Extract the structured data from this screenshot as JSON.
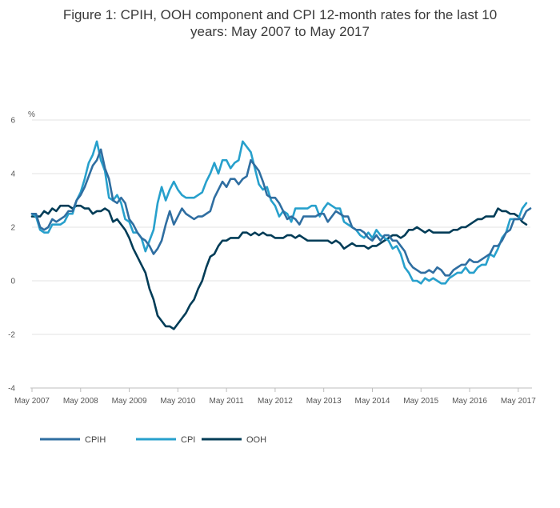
{
  "chart_data": {
    "type": "line",
    "title_lines": [
      "Figure 1: CPIH, OOH component and CPI 12-month rates for the last 10",
      "years: May 2007 to May 2017"
    ],
    "ylabel": "%",
    "ylim": [
      -4,
      6
    ],
    "yticks": [
      -4,
      -2,
      0,
      2,
      4,
      6
    ],
    "xticks": [
      "May 2007",
      "May 2008",
      "May 2009",
      "May 2010",
      "May 2011",
      "May 2012",
      "May 2013",
      "May 2014",
      "May 2015",
      "May 2016",
      "May 2017"
    ],
    "grid": true,
    "legend_position": "bottom-left",
    "x_start": "May 2007",
    "x_end": "May 2017",
    "series": [
      {
        "name": "CPIH",
        "color": "#2f6ea1",
        "values": [
          2.5,
          2.5,
          2.0,
          1.9,
          2.0,
          2.3,
          2.2,
          2.3,
          2.4,
          2.6,
          2.6,
          3.0,
          3.2,
          3.5,
          3.9,
          4.3,
          4.5,
          4.9,
          4.2,
          3.8,
          3.0,
          2.9,
          3.1,
          2.9,
          2.3,
          2.1,
          1.8,
          1.6,
          1.5,
          1.3,
          1.0,
          1.2,
          1.5,
          2.1,
          2.6,
          2.1,
          2.4,
          2.7,
          2.5,
          2.4,
          2.3,
          2.4,
          2.4,
          2.5,
          2.6,
          3.1,
          3.4,
          3.7,
          3.5,
          3.8,
          3.8,
          3.6,
          3.8,
          3.9,
          4.5,
          4.3,
          4.1,
          3.7,
          3.2,
          3.1,
          3.1,
          2.9,
          2.6,
          2.3,
          2.4,
          2.3,
          2.1,
          2.4,
          2.4,
          2.4,
          2.4,
          2.5,
          2.5,
          2.2,
          2.4,
          2.6,
          2.5,
          2.4,
          2.4,
          2.0,
          1.9,
          1.9,
          1.8,
          1.6,
          1.5,
          1.7,
          1.5,
          1.7,
          1.7,
          1.5,
          1.5,
          1.3,
          1.1,
          0.7,
          0.5,
          0.4,
          0.3,
          0.3,
          0.4,
          0.3,
          0.5,
          0.4,
          0.2,
          0.2,
          0.4,
          0.5,
          0.6,
          0.6,
          0.8,
          0.7,
          0.7,
          0.8,
          0.9,
          1.0,
          1.3,
          1.3,
          1.5,
          1.8,
          1.9,
          2.3,
          2.3,
          2.3,
          2.6,
          2.7
        ]
      },
      {
        "name": "CPI",
        "color": "#27a0cc",
        "values": [
          2.5,
          2.4,
          1.9,
          1.8,
          1.8,
          2.1,
          2.1,
          2.1,
          2.2,
          2.5,
          2.5,
          3.0,
          3.3,
          3.8,
          4.4,
          4.7,
          5.2,
          4.5,
          4.1,
          3.1,
          3.0,
          3.2,
          2.9,
          2.3,
          2.2,
          1.8,
          1.8,
          1.6,
          1.1,
          1.5,
          1.9,
          2.9,
          3.5,
          3.0,
          3.4,
          3.7,
          3.4,
          3.2,
          3.1,
          3.1,
          3.1,
          3.2,
          3.3,
          3.7,
          4.0,
          4.4,
          4.0,
          4.5,
          4.5,
          4.2,
          4.4,
          4.5,
          5.2,
          5.0,
          4.8,
          4.2,
          3.6,
          3.4,
          3.5,
          3.0,
          2.8,
          2.4,
          2.6,
          2.5,
          2.2,
          2.7,
          2.7,
          2.7,
          2.7,
          2.8,
          2.8,
          2.4,
          2.7,
          2.9,
          2.8,
          2.7,
          2.7,
          2.2,
          2.1,
          2.0,
          1.9,
          1.7,
          1.6,
          1.8,
          1.6,
          1.9,
          1.7,
          1.6,
          1.5,
          1.2,
          1.3,
          1.0,
          0.5,
          0.3,
          0.0,
          0.0,
          -0.1,
          0.1,
          0.0,
          0.1,
          0.0,
          -0.1,
          -0.1,
          0.1,
          0.2,
          0.3,
          0.3,
          0.5,
          0.3,
          0.3,
          0.5,
          0.6,
          0.6,
          1.0,
          0.9,
          1.2,
          1.6,
          1.8,
          2.3,
          2.3,
          2.3,
          2.7,
          2.9
        ]
      },
      {
        "name": "OOH",
        "color": "#003c57",
        "values": [
          2.4,
          2.4,
          2.4,
          2.6,
          2.5,
          2.7,
          2.6,
          2.8,
          2.8,
          2.8,
          2.7,
          2.8,
          2.8,
          2.7,
          2.7,
          2.5,
          2.6,
          2.6,
          2.7,
          2.6,
          2.2,
          2.3,
          2.1,
          1.9,
          1.6,
          1.2,
          0.9,
          0.6,
          0.3,
          -0.3,
          -0.7,
          -1.3,
          -1.5,
          -1.7,
          -1.7,
          -1.8,
          -1.6,
          -1.4,
          -1.2,
          -0.9,
          -0.7,
          -0.3,
          0.0,
          0.5,
          0.9,
          1.0,
          1.3,
          1.5,
          1.5,
          1.6,
          1.6,
          1.6,
          1.8,
          1.8,
          1.7,
          1.8,
          1.7,
          1.8,
          1.7,
          1.7,
          1.6,
          1.6,
          1.6,
          1.7,
          1.7,
          1.6,
          1.7,
          1.6,
          1.5,
          1.5,
          1.5,
          1.5,
          1.5,
          1.5,
          1.4,
          1.5,
          1.4,
          1.2,
          1.3,
          1.4,
          1.3,
          1.3,
          1.3,
          1.2,
          1.3,
          1.3,
          1.4,
          1.5,
          1.6,
          1.7,
          1.7,
          1.6,
          1.7,
          1.9,
          1.9,
          2.0,
          1.9,
          1.8,
          1.9,
          1.8,
          1.8,
          1.8,
          1.8,
          1.8,
          1.9,
          1.9,
          2.0,
          2.0,
          2.1,
          2.2,
          2.3,
          2.3,
          2.4,
          2.4,
          2.4,
          2.7,
          2.6,
          2.6,
          2.5,
          2.5,
          2.4,
          2.2,
          2.1
        ]
      }
    ]
  }
}
